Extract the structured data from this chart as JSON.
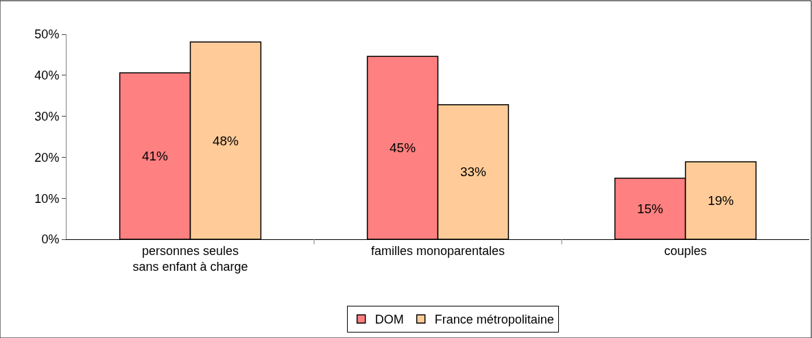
{
  "chart_data": {
    "type": "bar",
    "categories": [
      "personnes seules\nsans enfant à charge",
      "familles monoparentales",
      "couples"
    ],
    "series": [
      {
        "name": "DOM",
        "color": "#ff8080",
        "values": [
          40.6,
          44.6,
          14.9
        ],
        "value_labels": [
          "41%",
          "45%",
          "15%"
        ]
      },
      {
        "name": "France métropolitaine",
        "color": "#ffcc99",
        "values": [
          48.1,
          32.8,
          18.9
        ],
        "value_labels": [
          "48%",
          "33%",
          "19%"
        ]
      }
    ],
    "ylim": [
      0,
      50
    ],
    "yticks": [
      {
        "value": 0,
        "label": "0%"
      },
      {
        "value": 10,
        "label": "10%"
      },
      {
        "value": 20,
        "label": "20%"
      },
      {
        "value": 30,
        "label": "30%"
      },
      {
        "value": 40,
        "label": "40%"
      },
      {
        "value": 50,
        "label": "50%"
      }
    ],
    "legend": "bottom"
  }
}
